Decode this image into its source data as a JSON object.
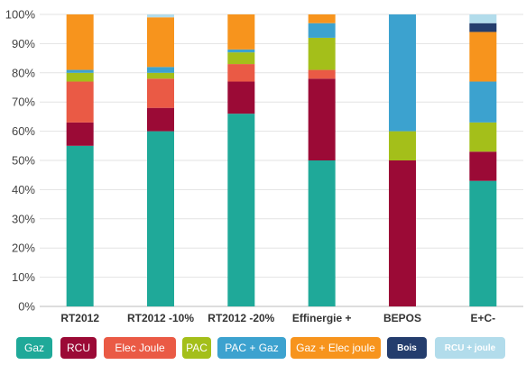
{
  "chart_data": {
    "type": "bar",
    "stacked": true,
    "categories": [
      "RT2012",
      "RT2012 -10%",
      "RT2012 -20%",
      "Effinergie +",
      "BEPOS",
      "E+C-"
    ],
    "ylim": [
      0,
      100
    ],
    "yticks": [
      "0%",
      "10%",
      "20%",
      "30%",
      "40%",
      "50%",
      "60%",
      "70%",
      "80%",
      "90%",
      "100%"
    ],
    "grid": true,
    "legend_position": "bottom",
    "series": [
      {
        "name": "Gaz",
        "color": "#1fa999",
        "values": [
          55,
          60,
          66,
          50,
          0,
          43
        ]
      },
      {
        "name": "RCU",
        "color": "#9b0a36",
        "values": [
          8,
          8,
          11,
          28,
          50,
          10
        ]
      },
      {
        "name": "Elec Joule",
        "color": "#ea5a45",
        "values": [
          14,
          10,
          6,
          3,
          0,
          0
        ]
      },
      {
        "name": "PAC",
        "color": "#a4bf1a",
        "values": [
          3,
          2,
          4,
          11,
          10,
          10
        ]
      },
      {
        "name": "PAC + Gaz",
        "color": "#3ca2cf",
        "values": [
          1,
          2,
          1,
          5,
          40,
          14
        ]
      },
      {
        "name": "Gaz + Elec joule",
        "color": "#f7941d",
        "values": [
          19,
          17,
          12,
          3,
          0,
          17
        ]
      },
      {
        "name": "Bois",
        "color": "#243d6d",
        "values": [
          0,
          0,
          0,
          0,
          0,
          3
        ]
      },
      {
        "name": "RCU + joule",
        "color": "#b2dceb",
        "values": [
          0,
          1,
          0,
          0,
          0,
          3
        ]
      }
    ]
  }
}
